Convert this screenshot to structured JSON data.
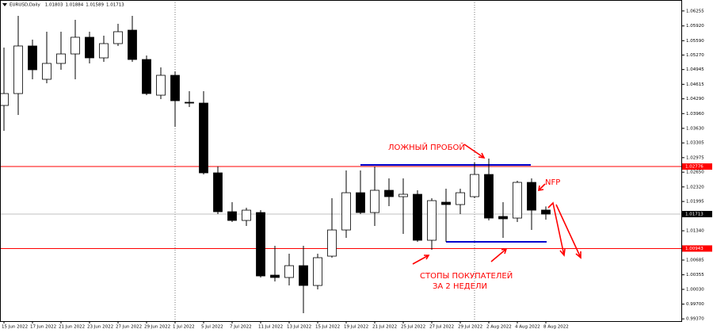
{
  "chart_data": {
    "type": "candlestick",
    "title": "EURUSD,Daily",
    "categories": [
      "15 Jun 2022",
      null,
      "17 Jun 2022",
      null,
      "21 Jun 2022",
      null,
      "23 Jun 2022",
      null,
      "27 Jun 2022",
      null,
      "29 Jun 2022",
      null,
      "1 Jul 2022",
      null,
      "5 Jul 2022",
      null,
      "7 Jul 2022",
      null,
      "11 Jul 2022",
      null,
      "13 Jul 2022",
      null,
      "15 Jul 2022",
      null,
      "19 Jul 2022",
      null,
      "21 Jul 2022",
      null,
      "25 Jul 2022",
      null,
      "27 Jul 2022",
      null,
      "29 Jul 2022",
      null,
      "2 Aug 2022",
      null,
      "4 Aug 2022",
      null,
      "8 Aug 2022"
    ],
    "open": [
      1.04142,
      1.04408,
      1.05472,
      1.04727,
      1.05082,
      1.05294,
      1.05667,
      1.05206,
      1.05525,
      1.05826,
      1.0517,
      1.04372,
      1.04816,
      1.04213,
      1.04195,
      1.02635,
      1.01766,
      1.01571,
      1.01748,
      1.00348,
      1.00295,
      1.0056,
      1.00117,
      1.00773,
      1.01358,
      1.02191,
      1.01748,
      1.02245,
      1.02103,
      1.02156,
      1.01128,
      1.01979,
      1.01926,
      1.02103,
      1.02599,
      1.0166,
      1.01624,
      1.02422,
      1.01803
    ],
    "high": [
      1.05436,
      1.06145,
      1.05613,
      1.05791,
      1.05791,
      1.06057,
      1.05791,
      1.05702,
      1.05968,
      1.06145,
      1.05259,
      1.04993,
      1.04904,
      1.04461,
      1.04461,
      1.02777,
      1.01979,
      1.01855,
      1.01801,
      1.01004,
      1.00826,
      1.01004,
      1.00826,
      1.02067,
      1.02688,
      1.02688,
      1.02777,
      1.02511,
      1.02511,
      1.02245,
      1.02067,
      1.0228,
      1.0228,
      1.02865,
      1.02954,
      1.01979,
      1.02457,
      1.02511,
      1.01884
    ],
    "low": [
      1.03574,
      1.03929,
      1.04727,
      1.04638,
      1.0494,
      1.04727,
      1.05082,
      1.05117,
      1.05472,
      1.05117,
      1.04372,
      1.04284,
      1.03663,
      1.04106,
      1.02599,
      1.01713,
      1.01536,
      1.01447,
      1.00295,
      1.00206,
      1.00117,
      0.99497,
      1.00029,
      1.00738,
      1.01181,
      1.01713,
      1.01447,
      1.0189,
      1.0127,
      1.01092,
      1.00915,
      1.01092,
      1.01713,
      1.02067,
      1.01571,
      1.01181,
      1.01536,
      1.01358,
      1.01589
    ],
    "close": [
      1.04408,
      1.05472,
      1.0494,
      1.05082,
      1.05294,
      1.05667,
      1.05206,
      1.05525,
      1.05791,
      1.0517,
      1.04408,
      1.04816,
      1.04248,
      1.04195,
      1.02635,
      1.01766,
      1.01571,
      1.01801,
      1.0033,
      1.00295,
      1.0056,
      1.00117,
      1.00738,
      1.01358,
      1.02191,
      1.01748,
      1.02245,
      1.02103,
      1.02156,
      1.01128,
      1.02014,
      1.01926,
      1.02191,
      1.02599,
      1.01624,
      1.01607,
      1.02422,
      1.01801,
      1.01713
    ],
    "up_color": "#ffffff",
    "down_color": "#000000",
    "ylim": [
      0.9932,
      1.065
    ],
    "yticks": [
      1.06255,
      {
        "value": 1.0592,
        "label": "1.05920"
      },
      {
        "value": 1.0559,
        "label": "1.05590"
      },
      {
        "value": 1.0527,
        "label": "1.05270"
      },
      1.04945,
      1.04615,
      {
        "value": 1.0429,
        "label": "1.04290"
      },
      {
        "value": 1.0396,
        "label": "1.03960"
      },
      {
        "value": 1.0363,
        "label": "1.03630"
      },
      1.03305,
      1.02975,
      {
        "value": 1.0265,
        "label": "1.02650"
      },
      {
        "value": 1.0232,
        "label": "1.02320"
      },
      1.01995,
      {
        "value": 1.0134,
        "label": "1.01340"
      },
      1.00685,
      1.00355,
      {
        "value": 1.0003,
        "label": "1.00030"
      },
      {
        "value": 0.997,
        "label": "0.99700"
      },
      {
        "value": 0.9937,
        "label": "0.99370"
      }
    ],
    "hlines": [
      {
        "value": 1.02776,
        "color": "#ff0000"
      },
      {
        "value": 1.00943,
        "color": "#ff0000"
      }
    ],
    "levels": [
      {
        "value": 1.02812,
        "color": "#0000cd"
      },
      {
        "value": 1.01092,
        "color": "#0000cd"
      }
    ],
    "annotations": [
      "ЛОЖНЫЙ ПРОБОЙ",
      "NFP",
      "СТОПЫ ПОКУПАТЕЛЕЙ",
      "ЗА 2 НЕДЕЛИ"
    ]
  }
}
